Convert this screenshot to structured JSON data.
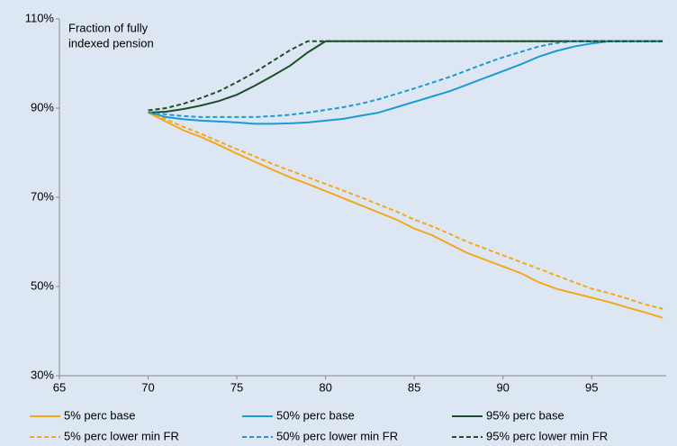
{
  "chart_data": {
    "type": "line",
    "annotation": [
      "Fraction of fully",
      "indexed pension"
    ],
    "x": [
      70,
      71,
      72,
      73,
      74,
      75,
      76,
      77,
      78,
      79,
      80,
      81,
      82,
      83,
      84,
      85,
      86,
      87,
      88,
      89,
      90,
      91,
      92,
      93,
      94,
      95,
      96,
      97,
      98,
      99
    ],
    "series": [
      {
        "name": "5% perc base",
        "color": "#f5a81c",
        "dash": false,
        "values": [
          89,
          87,
          85,
          83.5,
          81.7,
          79.8,
          78,
          76.2,
          74.5,
          73,
          71.4,
          69.8,
          68.2,
          66.6,
          65,
          63,
          61.5,
          59.5,
          57.5,
          56,
          54.5,
          53,
          51,
          49.5,
          48.5,
          47.5,
          46.5,
          45.3,
          44.2,
          43
        ]
      },
      {
        "name": "50% perc base",
        "color": "#1a9bd7",
        "dash": false,
        "values": [
          89,
          88,
          87.5,
          87.2,
          87,
          86.8,
          86.5,
          86.5,
          86.6,
          86.8,
          87.2,
          87.6,
          88.3,
          89,
          90.2,
          91.4,
          92.6,
          93.8,
          95.3,
          96.8,
          98.3,
          99.8,
          101.5,
          102.8,
          103.8,
          104.5,
          105,
          105,
          105,
          105
        ]
      },
      {
        "name": "95% perc base",
        "color": "#1e4d2b",
        "dash": false,
        "values": [
          89,
          89.2,
          89.8,
          90.6,
          91.6,
          93,
          95,
          97.2,
          99.5,
          102.5,
          105,
          105,
          105,
          105,
          105,
          105,
          105,
          105,
          105,
          105,
          105,
          105,
          105,
          105,
          105,
          105,
          105,
          105,
          105,
          105
        ]
      },
      {
        "name": "5% perc lower min FR",
        "color": "#f5a81c",
        "dash": true,
        "values": [
          89,
          87.5,
          85.8,
          84.2,
          82.5,
          80.8,
          79.2,
          77.5,
          76,
          74.5,
          73,
          71.5,
          70,
          68.4,
          66.8,
          65,
          63.5,
          61.8,
          60,
          58.5,
          57,
          55.5,
          54,
          52.5,
          51,
          49.5,
          48.5,
          47.3,
          46,
          45
        ]
      },
      {
        "name": "50% perc lower min FR",
        "color": "#1a9bd7",
        "dash": true,
        "values": [
          89,
          88.6,
          88.2,
          88,
          88,
          88,
          88,
          88.2,
          88.5,
          89,
          89.6,
          90.2,
          91,
          92,
          93.2,
          94.4,
          95.7,
          97,
          98.5,
          100,
          101.4,
          102.6,
          103.8,
          104.6,
          105,
          105,
          105,
          105,
          105,
          105
        ]
      },
      {
        "name": "95% perc lower min FR",
        "color": "#1e4d2b",
        "dash": true,
        "values": [
          89.5,
          90,
          91,
          92.3,
          93.8,
          95.8,
          98,
          100.5,
          103,
          105,
          105,
          105,
          105,
          105,
          105,
          105,
          105,
          105,
          105,
          105,
          105,
          105,
          105,
          105,
          105,
          105,
          105,
          105,
          105,
          105
        ]
      }
    ],
    "xlim": [
      65,
      99.2
    ],
    "xticks": [
      65,
      70,
      75,
      80,
      85,
      90,
      95
    ],
    "ylim": [
      30,
      110
    ],
    "yticks": [
      {
        "value": 30,
        "label": "30%"
      },
      {
        "value": 50,
        "label": "50%"
      },
      {
        "value": 70,
        "label": "70%"
      },
      {
        "value": 90,
        "label": "90%"
      },
      {
        "value": 110,
        "label": "110%"
      }
    ],
    "grid": false
  }
}
